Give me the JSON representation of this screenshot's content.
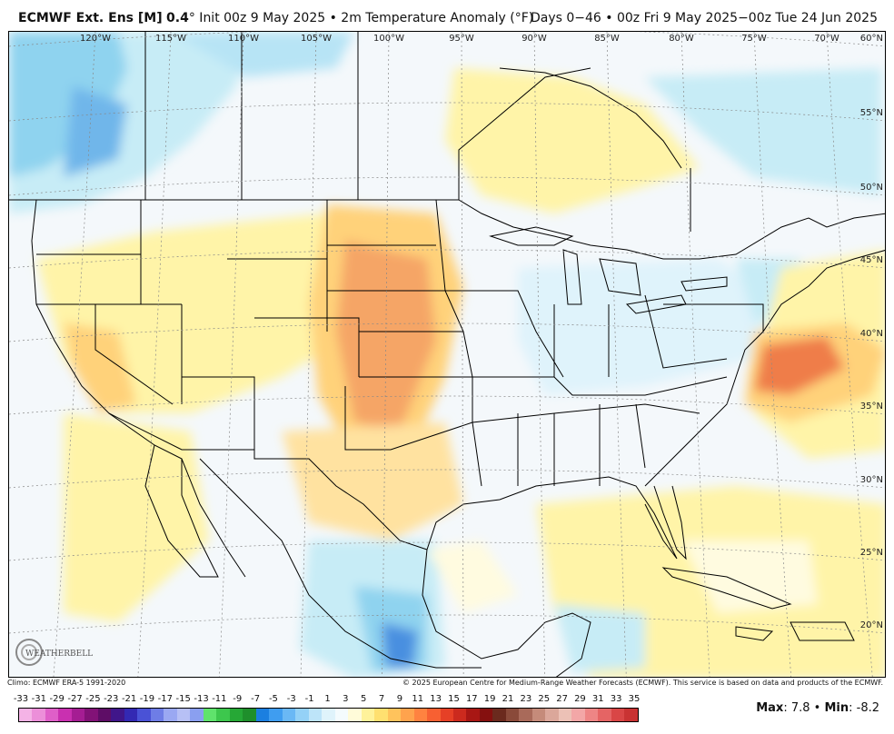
{
  "header": {
    "model": "ECMWF Ext. Ens [M]",
    "resolution": "0.4",
    "deg": "°",
    "init": " Init 00z 9 May 2025 • 2m Temperature Anomaly (°F)",
    "range": "Days 0−46 • 00z Fri 9 May 2025−00z Tue 24 Jun 2025"
  },
  "map": {
    "longitudes": [
      "120°W",
      "115°W",
      "110°W",
      "105°W",
      "100°W",
      "95°W",
      "90°W",
      "85°W",
      "80°W",
      "75°W",
      "70°W"
    ],
    "latitudes": [
      "60°N",
      "55°N",
      "50°N",
      "45°N",
      "40°N",
      "35°N",
      "30°N",
      "25°N",
      "20°N"
    ],
    "logo_text": "WEATHERBELL"
  },
  "footer": {
    "climo": "Climo: ECMWF ERA-5 1991-2020",
    "copyright": "© 2025 European Centre for Medium-Range Weather Forecasts (ECMWF). This service is based on data and products of the ECMWF."
  },
  "scale": {
    "labels": [
      "-33",
      "-31",
      "-29",
      "-27",
      "-25",
      "-23",
      "-21",
      "-19",
      "-17",
      "-15",
      "-13",
      "-11",
      "-9",
      "-7",
      "-5",
      "-3",
      "-1",
      "1",
      "3",
      "5",
      "7",
      "9",
      "11",
      "13",
      "15",
      "17",
      "19",
      "21",
      "23",
      "25",
      "27",
      "29",
      "31",
      "33",
      "35"
    ],
    "colors": [
      "#f4b3e6",
      "#ec8fd9",
      "#df5fc8",
      "#c930b0",
      "#a51d93",
      "#821277",
      "#5e0d66",
      "#40168a",
      "#3329b3",
      "#4a52d6",
      "#6e7de6",
      "#9aa8f2",
      "#b7c0f5",
      "#8a9ff0",
      "#5fe36c",
      "#3dc74d",
      "#26a836",
      "#1f8f2c",
      "#1b7fe0",
      "#3f9df0",
      "#6ab8f5",
      "#94d1f7",
      "#bde4f9",
      "#dff3fb",
      "#f4fbfd",
      "#fffbd9",
      "#fff29a",
      "#ffe070",
      "#ffc35c",
      "#ffa34d",
      "#ff8240",
      "#f76032",
      "#e64026",
      "#cc2a1e",
      "#a81714",
      "#85100f",
      "#6b2a1e",
      "#8a4a3a",
      "#a96a5a",
      "#c58b7a",
      "#dba79a",
      "#ecc1b6",
      "#f3a7a7",
      "#ee8585",
      "#e56464",
      "#d94646",
      "#c93333"
    ]
  },
  "stats": {
    "max_label": "Max",
    "max_value": ": 7.8 • ",
    "min_label": "Min",
    "min_value": ": -8.2"
  },
  "colors": {
    "cold_light": "#c7ecf6",
    "cold_mid": "#8fd3ef",
    "cold_deep": "#4a8fe0",
    "neutral": "#f4f8fb",
    "warm_light": "#fff4a8",
    "warm_mid": "#ffd27a",
    "warm_deep": "#f5a566",
    "hot": "#ef7d4a"
  }
}
